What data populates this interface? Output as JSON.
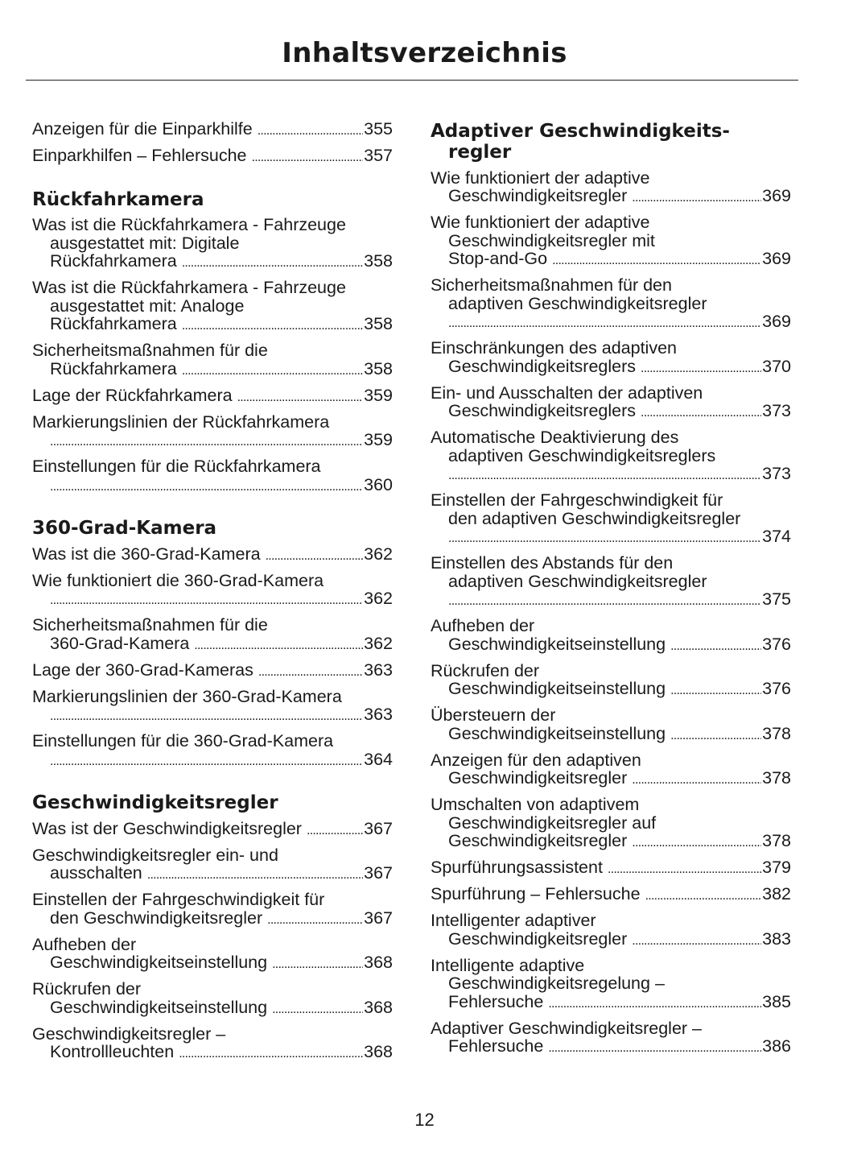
{
  "title": "Inhaltsverzeichnis",
  "page_number": "12",
  "columns": [
    {
      "blocks": [
        {
          "type": "entry",
          "lines": [
            "Anzeigen für die Einparkhilfe"
          ],
          "page": "355"
        },
        {
          "type": "entry",
          "lines": [
            "Einparkhilfen – Fehlersuche"
          ],
          "page": "357"
        },
        {
          "type": "heading",
          "lines": [
            "Rückfahrkamera"
          ]
        },
        {
          "type": "entry",
          "lines": [
            "Was ist die Rückfahrkamera - Fahrzeuge",
            "ausgestattet mit: Digitale",
            "Rückfahrkamera"
          ],
          "page": "358"
        },
        {
          "type": "entry",
          "lines": [
            "Was ist die Rückfahrkamera - Fahrzeuge",
            "ausgestattet mit: Analoge",
            "Rückfahrkamera"
          ],
          "page": "358"
        },
        {
          "type": "entry",
          "lines": [
            "Sicherheitsmaßnahmen für die",
            "Rückfahrkamera"
          ],
          "page": "358"
        },
        {
          "type": "entry",
          "lines": [
            "Lage der Rückfahrkamera"
          ],
          "page": "359"
        },
        {
          "type": "entry",
          "lines": [
            "Markierungslinien der Rückfahrkamera",
            ""
          ],
          "page": "359"
        },
        {
          "type": "entry",
          "lines": [
            "Einstellungen für die Rückfahrkamera",
            ""
          ],
          "page": "360"
        },
        {
          "type": "heading",
          "lines": [
            "360-Grad-Kamera"
          ]
        },
        {
          "type": "entry",
          "lines": [
            "Was ist die 360-Grad-Kamera"
          ],
          "page": "362"
        },
        {
          "type": "entry",
          "lines": [
            "Wie funktioniert die 360-Grad-Kamera",
            ""
          ],
          "page": "362"
        },
        {
          "type": "entry",
          "lines": [
            "Sicherheitsmaßnahmen für die",
            "360-Grad-Kamera"
          ],
          "page": "362"
        },
        {
          "type": "entry",
          "lines": [
            "Lage der 360-Grad-Kameras"
          ],
          "page": "363"
        },
        {
          "type": "entry",
          "lines": [
            "Markierungslinien der 360-Grad-Kamera",
            ""
          ],
          "page": "363"
        },
        {
          "type": "entry",
          "lines": [
            "Einstellungen für die 360-Grad-Kamera",
            ""
          ],
          "page": "364"
        },
        {
          "type": "heading",
          "lines": [
            "Geschwindigkeitsregler"
          ]
        },
        {
          "type": "entry",
          "lines": [
            "Was ist der Geschwindigkeitsregler"
          ],
          "page": "367"
        },
        {
          "type": "entry",
          "lines": [
            "Geschwindigkeitsregler ein- und",
            "ausschalten"
          ],
          "page": "367"
        },
        {
          "type": "entry",
          "lines": [
            "Einstellen der Fahrgeschwindigkeit für",
            "den Geschwindigkeitsregler"
          ],
          "page": "367"
        },
        {
          "type": "entry",
          "lines": [
            "Aufheben der",
            "Geschwindigkeitseinstellung"
          ],
          "page": "368"
        },
        {
          "type": "entry",
          "lines": [
            "Rückrufen der",
            "Geschwindigkeitseinstellung"
          ],
          "page": "368"
        },
        {
          "type": "entry",
          "lines": [
            "Geschwindigkeitsregler –",
            "Kontrollleuchten"
          ],
          "page": "368"
        }
      ]
    },
    {
      "blocks": [
        {
          "type": "heading",
          "lines": [
            "Adaptiver Geschwindigkeits-",
            "regler"
          ]
        },
        {
          "type": "entry",
          "lines": [
            "Wie funktioniert der adaptive",
            "Geschwindigkeitsregler"
          ],
          "page": "369"
        },
        {
          "type": "entry",
          "lines": [
            "Wie funktioniert der adaptive",
            "Geschwindigkeitsregler mit",
            "Stop-and-Go"
          ],
          "page": "369"
        },
        {
          "type": "entry",
          "lines": [
            "Sicherheitsmaßnahmen für den",
            "adaptiven Geschwindigkeitsregler",
            ""
          ],
          "page": "369"
        },
        {
          "type": "entry",
          "lines": [
            "Einschränkungen des adaptiven",
            "Geschwindigkeitsreglers"
          ],
          "page": "370"
        },
        {
          "type": "entry",
          "lines": [
            "Ein- und Ausschalten der adaptiven",
            "Geschwindigkeitsreglers"
          ],
          "page": "373"
        },
        {
          "type": "entry",
          "lines": [
            "Automatische Deaktivierung des",
            "adaptiven Geschwindigkeitsreglers",
            ""
          ],
          "page": "373"
        },
        {
          "type": "entry",
          "lines": [
            "Einstellen der Fahrgeschwindigkeit für",
            "den adaptiven Geschwindigkeitsregler",
            ""
          ],
          "page": "374"
        },
        {
          "type": "entry",
          "lines": [
            "Einstellen des Abstands für den",
            "adaptiven Geschwindigkeitsregler",
            ""
          ],
          "page": "375"
        },
        {
          "type": "entry",
          "lines": [
            "Aufheben der",
            "Geschwindigkeitseinstellung"
          ],
          "page": "376"
        },
        {
          "type": "entry",
          "lines": [
            "Rückrufen der",
            "Geschwindigkeitseinstellung"
          ],
          "page": "376"
        },
        {
          "type": "entry",
          "lines": [
            "Übersteuern der",
            "Geschwindigkeitseinstellung"
          ],
          "page": "378"
        },
        {
          "type": "entry",
          "lines": [
            "Anzeigen für den adaptiven",
            "Geschwindigkeitsregler"
          ],
          "page": "378"
        },
        {
          "type": "entry",
          "lines": [
            "Umschalten von adaptivem",
            "Geschwindigkeitsregler auf",
            "Geschwindigkeitsregler"
          ],
          "page": "378"
        },
        {
          "type": "entry",
          "lines": [
            "Spurführungsassistent"
          ],
          "page": "379"
        },
        {
          "type": "entry",
          "lines": [
            "Spurführung – Fehlersuche"
          ],
          "page": "382"
        },
        {
          "type": "entry",
          "lines": [
            "Intelligenter adaptiver",
            "Geschwindigkeitsregler"
          ],
          "page": "383"
        },
        {
          "type": "entry",
          "lines": [
            "Intelligente adaptive",
            "Geschwindigkeitsregelung –",
            "Fehlersuche"
          ],
          "page": "385"
        },
        {
          "type": "entry",
          "lines": [
            "Adaptiver Geschwindigkeitsregler –",
            "Fehlersuche"
          ],
          "page": "386"
        }
      ]
    }
  ]
}
